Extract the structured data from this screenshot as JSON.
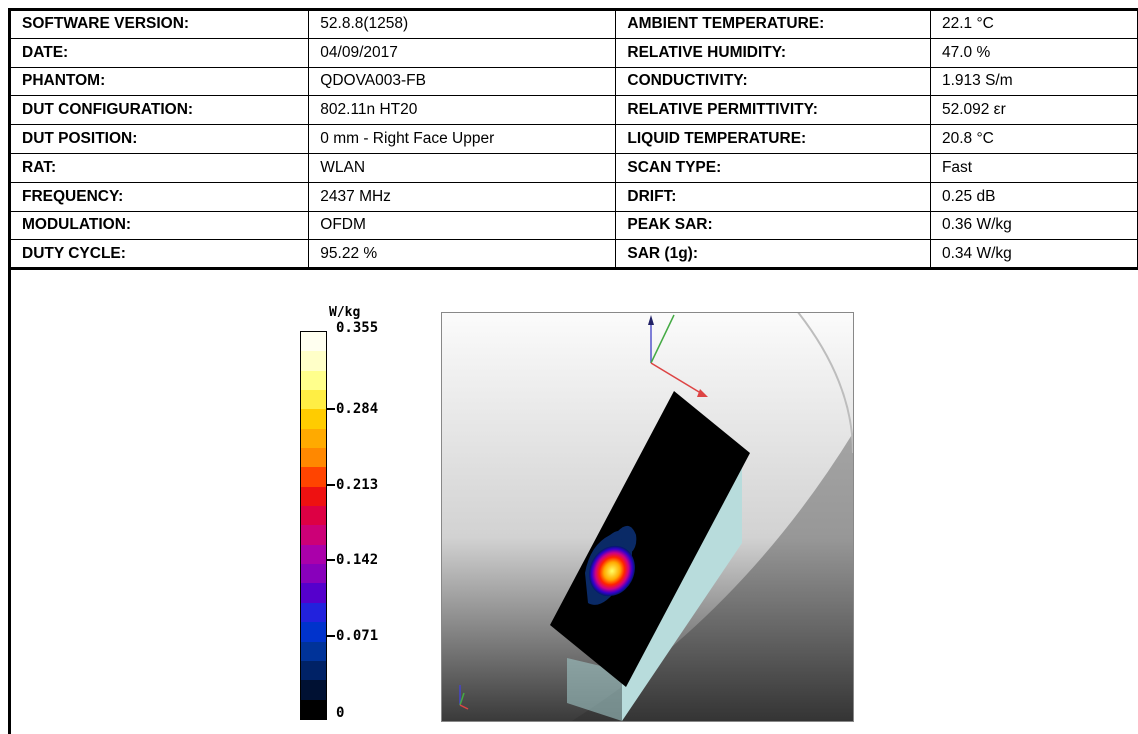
{
  "table": {
    "rows": [
      {
        "k1": "SOFTWARE VERSION:",
        "v1": "52.8.8(1258)",
        "k2": "AMBIENT TEMPERATURE:",
        "v2": "22.1 °C"
      },
      {
        "k1": "DATE:",
        "v1": "04/09/2017",
        "k2": "RELATIVE HUMIDITY:",
        "v2": "47.0 %"
      },
      {
        "k1": "PHANTOM:",
        "v1": "QDOVA003-FB",
        "k2": "CONDUCTIVITY:",
        "v2": "1.913 S/m"
      },
      {
        "k1": "DUT CONFIGURATION:",
        "v1": "802.11n HT20",
        "k2": "RELATIVE PERMITTIVITY:",
        "v2": "52.092 εr"
      },
      {
        "k1": "DUT POSITION:",
        "v1": "0 mm - Right Face Upper",
        "k2": "LIQUID TEMPERATURE:",
        "v2": "20.8 °C"
      },
      {
        "k1": "RAT:",
        "v1": "WLAN",
        "k2": "SCAN TYPE:",
        "v2": "Fast"
      },
      {
        "k1": "FREQUENCY:",
        "v1": "2437 MHz",
        "k2": "DRIFT:",
        "v2": "0.25 dB"
      },
      {
        "k1": "MODULATION:",
        "v1": "OFDM",
        "k2": "PEAK SAR:",
        "v2": "0.36 W/kg"
      },
      {
        "k1": "DUTY CYCLE:",
        "v1": "95.22 %",
        "k2": "SAR (1g):",
        "v2": "0.34 W/kg"
      }
    ]
  },
  "legend": {
    "unit": "W/kg",
    "ticks": [
      "0.355",
      "0.284",
      "0.213",
      "0.142",
      "0.071",
      "0"
    ],
    "colors": [
      "#fffff0",
      "#ffffc8",
      "#ffff8c",
      "#ffee44",
      "#ffcc00",
      "#ffaa00",
      "#ff8800",
      "#ff4400",
      "#ee1111",
      "#dd0044",
      "#cc0077",
      "#aa00aa",
      "#8800bb",
      "#5500cc",
      "#2222dd",
      "#0033cc",
      "#003399",
      "#002266",
      "#001133",
      "#000000"
    ]
  }
}
